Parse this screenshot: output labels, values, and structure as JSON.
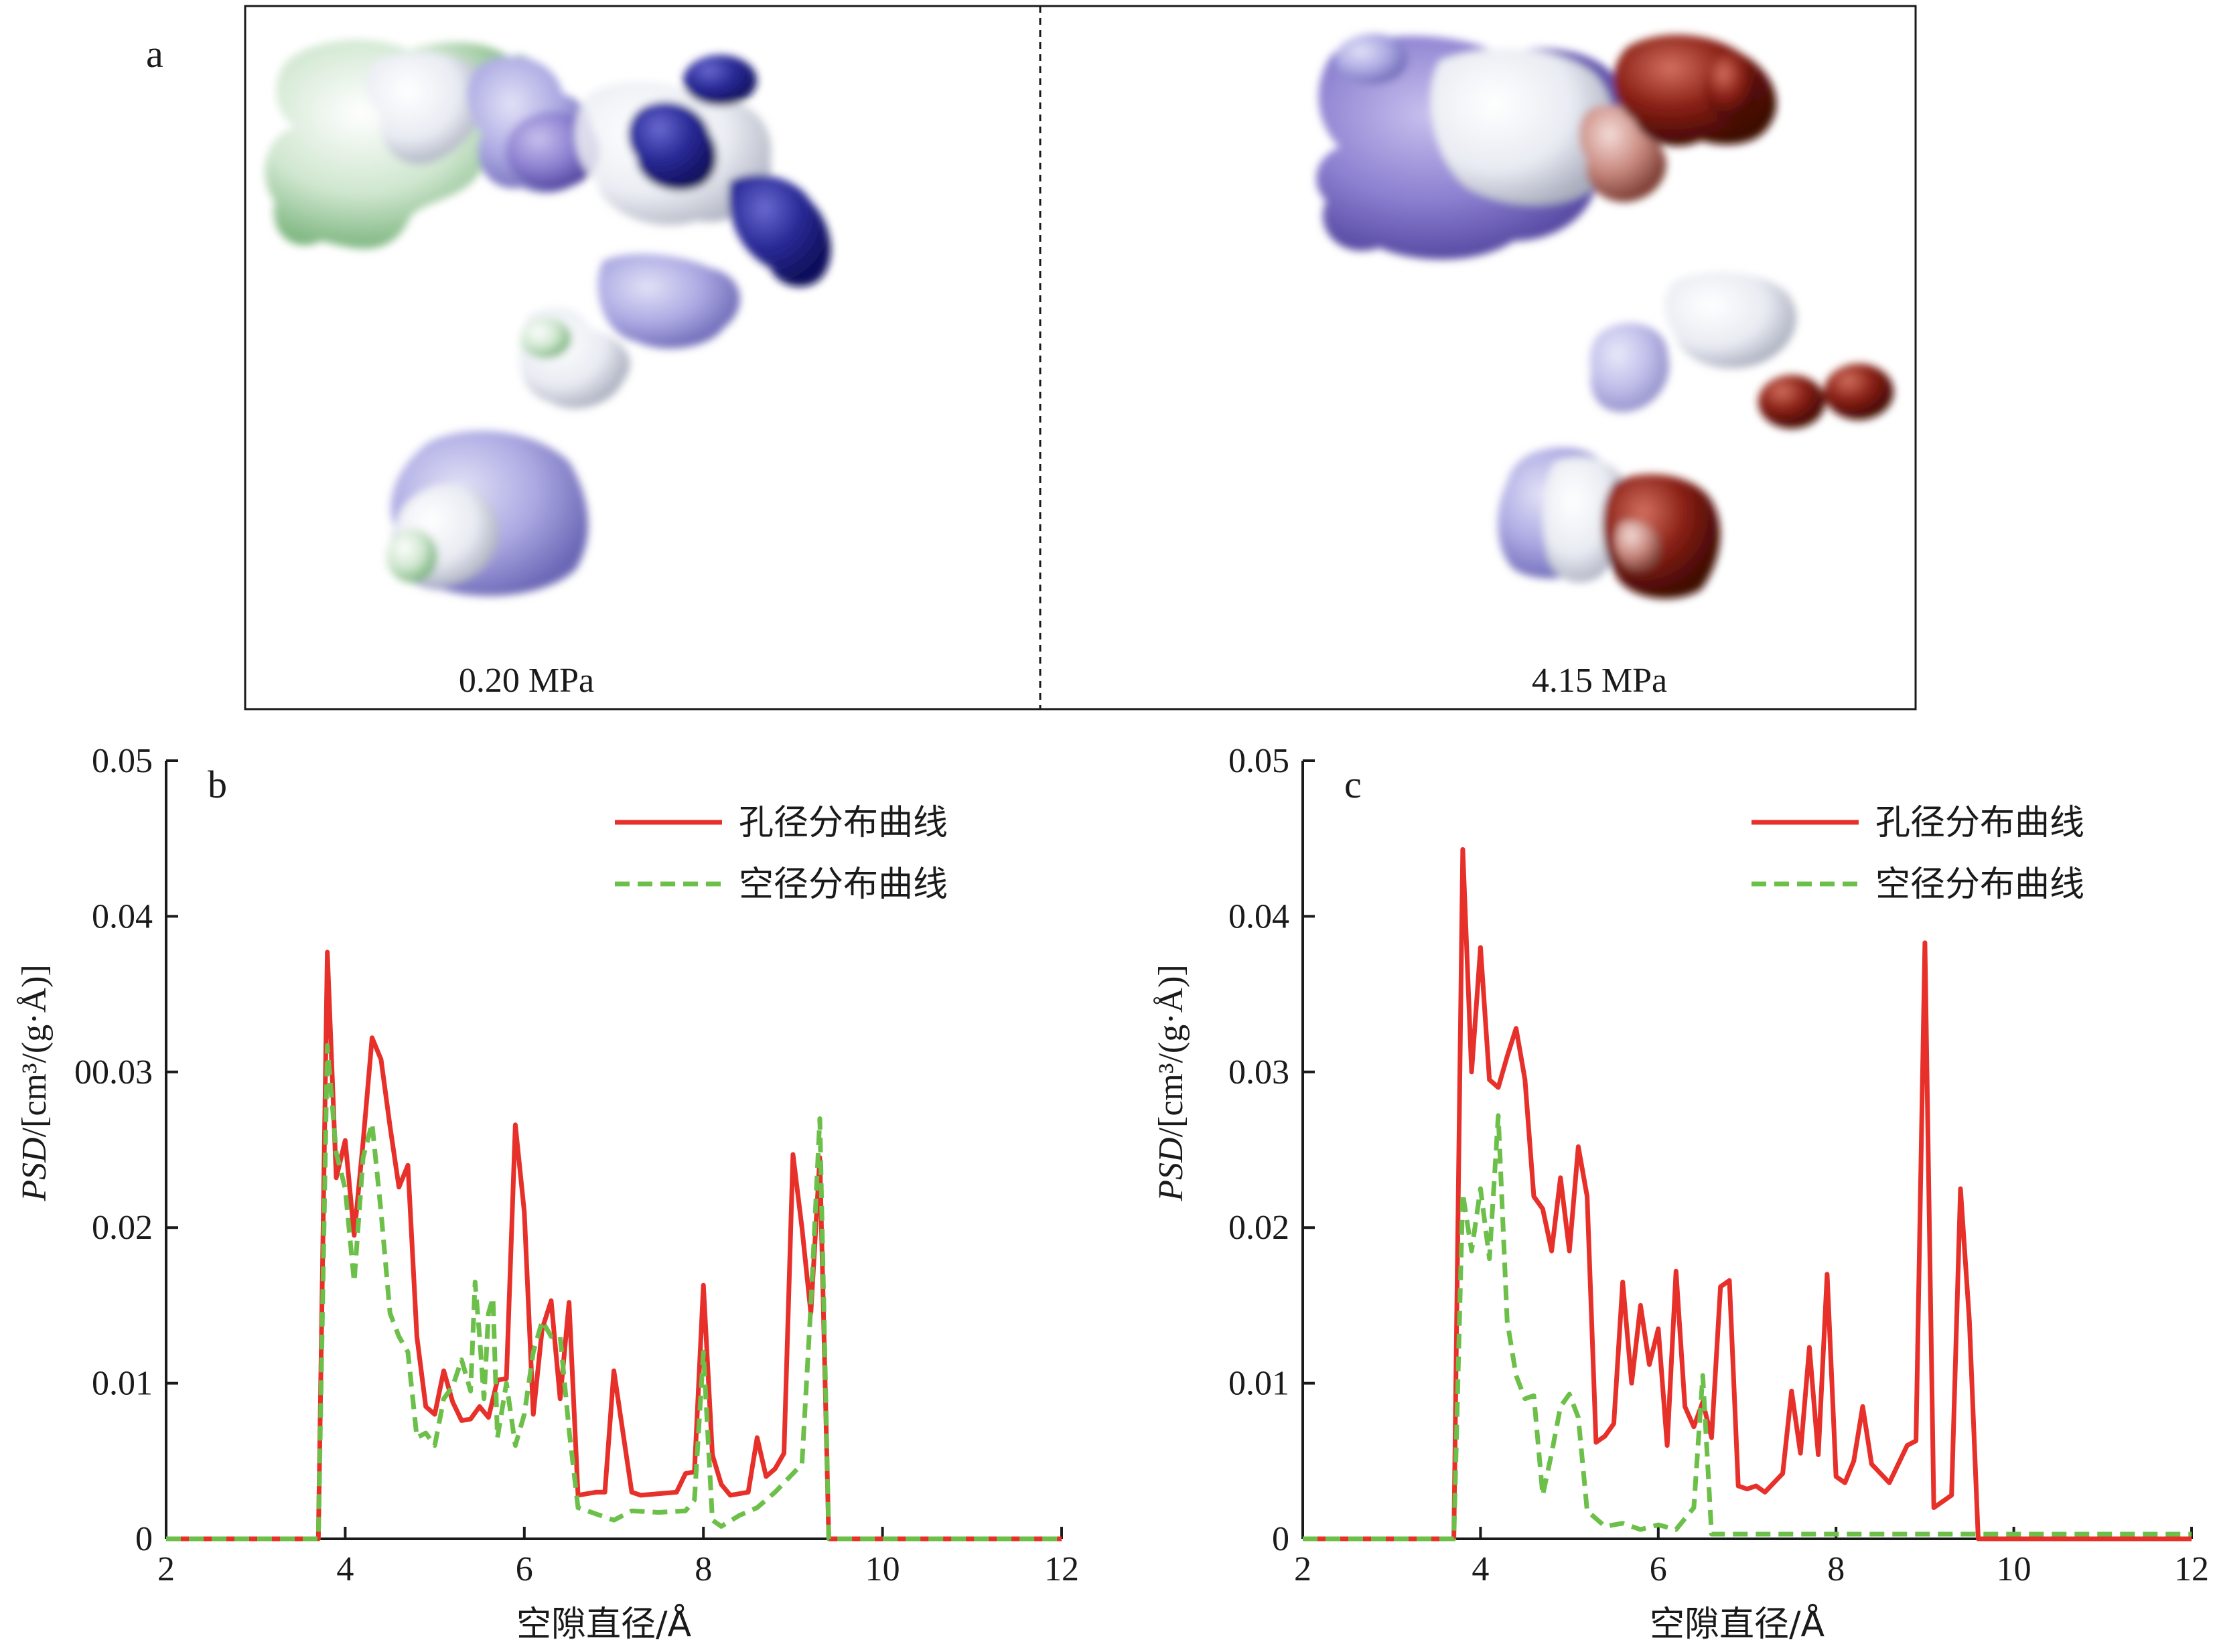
{
  "panel_a": {
    "label": "a",
    "left_caption": "0.20 MPa",
    "right_caption": "4.15 MPa",
    "colors": {
      "green": "#7fbf80",
      "white": "#eceff4",
      "light_purple": "#a8a6e0",
      "purple": "#7d72c8",
      "navy": "#1f1f8a",
      "rose": "#c98a80",
      "brown": "#7a1a12"
    }
  },
  "chart_data": [
    {
      "type": "line",
      "panel_label": "b",
      "xlabel": "空隙直径/Å",
      "ylabel_italic": "PSD",
      "ylabel_rest": "/[cm³/(g·Å)]",
      "xlim": [
        2,
        12
      ],
      "ylim": [
        0,
        0.05
      ],
      "x_ticks": [
        "2",
        "4",
        "6",
        "8",
        "10",
        "12"
      ],
      "y_ticks": [
        "0",
        "0.01",
        "0.02",
        "00.03",
        "0.04",
        "0.05"
      ],
      "legend_position": "top-right",
      "series": [
        {
          "name": "孔径分布曲线",
          "color": "#e8302a",
          "dash": "solid",
          "points": [
            [
              2,
              0
            ],
            [
              3.7,
              0
            ],
            [
              3.8,
              0.0377
            ],
            [
              3.9,
              0.0232
            ],
            [
              4.0,
              0.0256
            ],
            [
              4.1,
              0.0195
            ],
            [
              4.2,
              0.0255
            ],
            [
              4.3,
              0.0322
            ],
            [
              4.4,
              0.0308
            ],
            [
              4.5,
              0.0265
            ],
            [
              4.6,
              0.0226
            ],
            [
              4.7,
              0.024
            ],
            [
              4.8,
              0.013
            ],
            [
              4.9,
              0.0085
            ],
            [
              5.0,
              0.008
            ],
            [
              5.1,
              0.0108
            ],
            [
              5.2,
              0.0088
            ],
            [
              5.3,
              0.0076
            ],
            [
              5.4,
              0.0077
            ],
            [
              5.5,
              0.0085
            ],
            [
              5.6,
              0.0078
            ],
            [
              5.7,
              0.0102
            ],
            [
              5.8,
              0.0103
            ],
            [
              5.9,
              0.0266
            ],
            [
              6.0,
              0.021
            ],
            [
              6.1,
              0.008
            ],
            [
              6.2,
              0.0135
            ],
            [
              6.3,
              0.0153
            ],
            [
              6.4,
              0.009
            ],
            [
              6.5,
              0.0152
            ],
            [
              6.6,
              0.0028
            ],
            [
              6.8,
              0.003
            ],
            [
              6.9,
              0.003
            ],
            [
              7.0,
              0.0108
            ],
            [
              7.2,
              0.003
            ],
            [
              7.3,
              0.0028
            ],
            [
              7.5,
              0.0029
            ],
            [
              7.7,
              0.003
            ],
            [
              7.8,
              0.0042
            ],
            [
              7.9,
              0.0043
            ],
            [
              8.0,
              0.0163
            ],
            [
              8.1,
              0.0054
            ],
            [
              8.2,
              0.0035
            ],
            [
              8.3,
              0.0028
            ],
            [
              8.5,
              0.003
            ],
            [
              8.6,
              0.0065
            ],
            [
              8.7,
              0.004
            ],
            [
              8.8,
              0.0045
            ],
            [
              8.9,
              0.0055
            ],
            [
              9.0,
              0.0247
            ],
            [
              9.1,
              0.02
            ],
            [
              9.2,
              0.0145
            ],
            [
              9.3,
              0.0245
            ],
            [
              9.4,
              0
            ],
            [
              12,
              0
            ]
          ]
        },
        {
          "name": "空径分布曲线",
          "color": "#6cc04a",
          "dash": "dashed",
          "points": [
            [
              2,
              0
            ],
            [
              3.7,
              0
            ],
            [
              3.8,
              0.0317
            ],
            [
              3.9,
              0.0248
            ],
            [
              4.0,
              0.0225
            ],
            [
              4.1,
              0.0165
            ],
            [
              4.2,
              0.0245
            ],
            [
              4.3,
              0.0267
            ],
            [
              4.4,
              0.021
            ],
            [
              4.5,
              0.0145
            ],
            [
              4.6,
              0.013
            ],
            [
              4.7,
              0.012
            ],
            [
              4.8,
              0.0065
            ],
            [
              4.9,
              0.0068
            ],
            [
              5.0,
              0.006
            ],
            [
              5.1,
              0.009
            ],
            [
              5.2,
              0.0098
            ],
            [
              5.3,
              0.0115
            ],
            [
              5.4,
              0.0095
            ],
            [
              5.45,
              0.0165
            ],
            [
              5.5,
              0.013
            ],
            [
              5.55,
              0.009
            ],
            [
              5.6,
              0.0145
            ],
            [
              5.65,
              0.0155
            ],
            [
              5.7,
              0.0065
            ],
            [
              5.8,
              0.01
            ],
            [
              5.9,
              0.006
            ],
            [
              6.0,
              0.008
            ],
            [
              6.1,
              0.012
            ],
            [
              6.2,
              0.014
            ],
            [
              6.3,
              0.013
            ],
            [
              6.4,
              0.013
            ],
            [
              6.5,
              0.007
            ],
            [
              6.6,
              0.002
            ],
            [
              6.8,
              0.0016
            ],
            [
              7.0,
              0.0012
            ],
            [
              7.2,
              0.0018
            ],
            [
              7.5,
              0.0017
            ],
            [
              7.8,
              0.0018
            ],
            [
              7.9,
              0.0025
            ],
            [
              8.0,
              0.012
            ],
            [
              8.1,
              0.0012
            ],
            [
              8.2,
              0.0008
            ],
            [
              8.4,
              0.0015
            ],
            [
              8.6,
              0.002
            ],
            [
              8.8,
              0.003
            ],
            [
              9.0,
              0.0042
            ],
            [
              9.1,
              0.0048
            ],
            [
              9.2,
              0.015
            ],
            [
              9.3,
              0.027
            ],
            [
              9.4,
              0
            ],
            [
              12,
              0
            ]
          ]
        }
      ]
    },
    {
      "type": "line",
      "panel_label": "c",
      "xlabel": "空隙直径/Å",
      "ylabel_italic": "PSD",
      "ylabel_rest": "/[cm³/(g·Å)]",
      "xlim": [
        2,
        12
      ],
      "ylim": [
        0,
        0.05
      ],
      "x_ticks": [
        "2",
        "4",
        "6",
        "8",
        "10",
        "12"
      ],
      "y_ticks": [
        "0",
        "0.01",
        "0.02",
        "0.03",
        "0.04",
        "0.05"
      ],
      "legend_position": "top-right",
      "series": [
        {
          "name": "孔径分布曲线",
          "color": "#e8302a",
          "dash": "solid",
          "points": [
            [
              2,
              0
            ],
            [
              3.7,
              0
            ],
            [
              3.8,
              0.0443
            ],
            [
              3.9,
              0.03
            ],
            [
              4.0,
              0.038
            ],
            [
              4.1,
              0.0295
            ],
            [
              4.2,
              0.029
            ],
            [
              4.3,
              0.031
            ],
            [
              4.4,
              0.0328
            ],
            [
              4.5,
              0.0295
            ],
            [
              4.6,
              0.022
            ],
            [
              4.7,
              0.0212
            ],
            [
              4.8,
              0.0185
            ],
            [
              4.9,
              0.0232
            ],
            [
              5.0,
              0.0185
            ],
            [
              5.1,
              0.0252
            ],
            [
              5.2,
              0.022
            ],
            [
              5.3,
              0.0062
            ],
            [
              5.4,
              0.0066
            ],
            [
              5.5,
              0.0074
            ],
            [
              5.6,
              0.0165
            ],
            [
              5.7,
              0.01
            ],
            [
              5.8,
              0.015
            ],
            [
              5.9,
              0.0112
            ],
            [
              6.0,
              0.0135
            ],
            [
              6.1,
              0.006
            ],
            [
              6.2,
              0.0172
            ],
            [
              6.3,
              0.0085
            ],
            [
              6.4,
              0.0072
            ],
            [
              6.5,
              0.0088
            ],
            [
              6.6,
              0.0065
            ],
            [
              6.7,
              0.0162
            ],
            [
              6.8,
              0.0166
            ],
            [
              6.9,
              0.0034
            ],
            [
              7.0,
              0.0032
            ],
            [
              7.1,
              0.0034
            ],
            [
              7.2,
              0.003
            ],
            [
              7.4,
              0.0042
            ],
            [
              7.5,
              0.0095
            ],
            [
              7.6,
              0.0055
            ],
            [
              7.7,
              0.0123
            ],
            [
              7.8,
              0.0054
            ],
            [
              7.9,
              0.017
            ],
            [
              8.0,
              0.004
            ],
            [
              8.1,
              0.0036
            ],
            [
              8.2,
              0.005
            ],
            [
              8.3,
              0.0085
            ],
            [
              8.4,
              0.0048
            ],
            [
              8.5,
              0.0042
            ],
            [
              8.6,
              0.0036
            ],
            [
              8.8,
              0.006
            ],
            [
              8.9,
              0.0063
            ],
            [
              9.0,
              0.0383
            ],
            [
              9.1,
              0.002
            ],
            [
              9.3,
              0.0028
            ],
            [
              9.4,
              0.0225
            ],
            [
              9.5,
              0.014
            ],
            [
              9.6,
              0
            ],
            [
              12,
              0
            ]
          ]
        },
        {
          "name": "空径分布曲线",
          "color": "#6cc04a",
          "dash": "dashed",
          "points": [
            [
              2,
              0
            ],
            [
              3.7,
              0
            ],
            [
              3.8,
              0.0222
            ],
            [
              3.9,
              0.0185
            ],
            [
              4.0,
              0.0225
            ],
            [
              4.1,
              0.018
            ],
            [
              4.2,
              0.0272
            ],
            [
              4.3,
              0.014
            ],
            [
              4.4,
              0.0105
            ],
            [
              4.5,
              0.009
            ],
            [
              4.6,
              0.0092
            ],
            [
              4.7,
              0.0028
            ],
            [
              4.8,
              0.0055
            ],
            [
              4.9,
              0.0085
            ],
            [
              5.0,
              0.0093
            ],
            [
              5.1,
              0.0078
            ],
            [
              5.2,
              0.0018
            ],
            [
              5.4,
              0.0008
            ],
            [
              5.6,
              0.001
            ],
            [
              5.8,
              0.0006
            ],
            [
              6.0,
              0.0009
            ],
            [
              6.2,
              0.0006
            ],
            [
              6.4,
              0.002
            ],
            [
              6.5,
              0.0105
            ],
            [
              6.6,
              0.0003
            ],
            [
              12,
              0.0003
            ]
          ]
        }
      ]
    }
  ]
}
